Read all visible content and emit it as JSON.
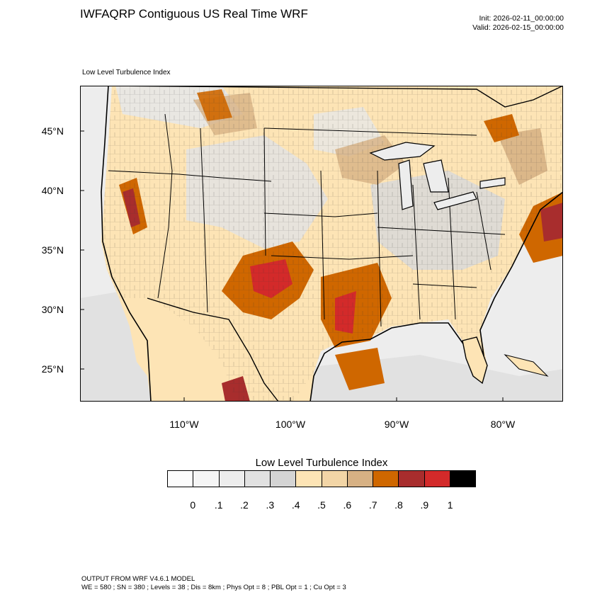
{
  "header": {
    "title": "IWFAQRP Contiguous US Real Time WRF",
    "init": "Init: 2026-02-11_00:00:00",
    "valid": "Valid: 2026-02-15_00:00:00"
  },
  "map": {
    "subtitle": "Low Level Turbulence Index",
    "lat_labels": [
      "45°N",
      "40°N",
      "35°N",
      "30°N",
      "25°N"
    ],
    "lon_labels": [
      "110°W",
      "100°W",
      "90°W",
      "80°W"
    ]
  },
  "colorbar": {
    "title": "Low Level Turbulence Index",
    "colors": [
      "#fcfcfc",
      "#f5f5f5",
      "#ededed",
      "#e1e1e1",
      "#d4d4d4",
      "#fde4b5",
      "#f2d5a6",
      "#d7b184",
      "#cf6700",
      "#a82d2d",
      "#d32a2a",
      "#000000"
    ],
    "labels": [
      "0",
      ".1",
      ".2",
      ".3",
      ".4",
      ".5",
      ".6",
      ".7",
      ".8",
      ".9",
      "1"
    ]
  },
  "footer": {
    "line1": "OUTPUT FROM WRF V4.6.1 MODEL",
    "line2": "WE = 580 ; SN = 380 ; Levels = 38 ; Dis = 8km ; Phys Opt = 8 ; PBL Opt = 1 ; Cu Opt = 3"
  }
}
